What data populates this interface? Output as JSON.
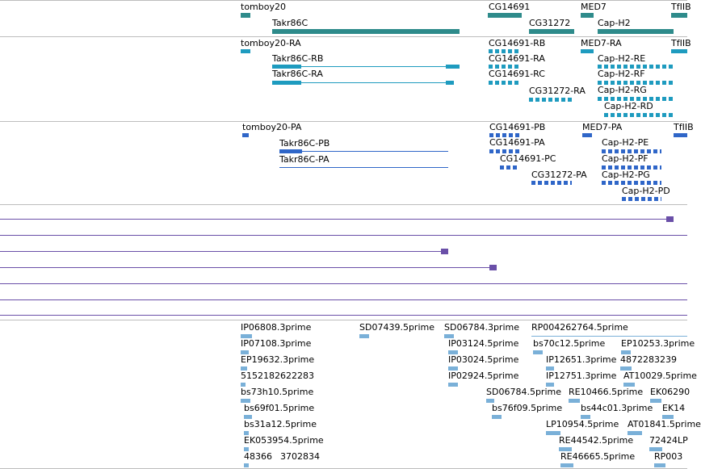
{
  "colors": {
    "gene_summary": "#2e8b8b",
    "transcript_teal": "#1e9bbf",
    "transcript_blue": "#2f66c8",
    "alignment_purple": "#6a4fa8",
    "est_light_blue": "#7ab0d8",
    "divider": "#bdbdbd"
  },
  "genes_track": {
    "labels": [
      "tomboy20",
      "CG14691",
      "MED7",
      "TfIIB",
      "Takr86C",
      "CG31272",
      "Cap-H2"
    ]
  },
  "rna_track": {
    "labels": [
      "tomboy20-RA",
      "CG14691-RB",
      "MED7-RA",
      "TfIIB",
      "Takr86C-RB",
      "CG14691-RA",
      "Cap-H2-RE",
      "Takr86C-RA",
      "CG14691-RC",
      "Cap-H2-RF",
      "Cap-H2-RG",
      "CG31272-RA",
      "Cap-H2-RD"
    ]
  },
  "protein_track": {
    "labels": [
      "tomboy20-PA",
      "CG14691-PB",
      "MED7-PA",
      "TfIIB",
      "Takr86C-PB",
      "CG14691-PA",
      "Cap-H2-PE",
      "Takr86C-PA",
      "CG14691-PC",
      "Cap-H2-PF",
      "CG31272-PA",
      "Cap-H2-PG",
      "Cap-H2-PD"
    ]
  },
  "est_track": {
    "labels": [
      "IP06808.3prime",
      "SD07439.5prime",
      "SD06784.3prime",
      "RP004262764.5prime",
      "IP07108.3prime",
      "IP03124.5prime",
      "bs70c12.5prime",
      "EP10253.3prime",
      "EP19632.3prime",
      "IP03024.5prime",
      "IP12651.3prime",
      "4872283239",
      "5152182622283",
      "IP02924.5prime",
      "IP12751.3prime",
      "AT10029.5prime",
      "bs73h10.5prime",
      "SD06784.5prime",
      "RE10466.5prime",
      "EK06290",
      "bs69f01.5prime",
      "bs76f09.5prime",
      "bs44c01.3prime",
      "EK14",
      "bs31a12.5prime",
      "LP10954.5prime",
      "AT01841.5prime",
      "EK053954.5prime",
      "RE44542.5prime",
      "72424LP",
      "48366",
      "3702834",
      "RE46665.5prime",
      "RP003"
    ]
  }
}
